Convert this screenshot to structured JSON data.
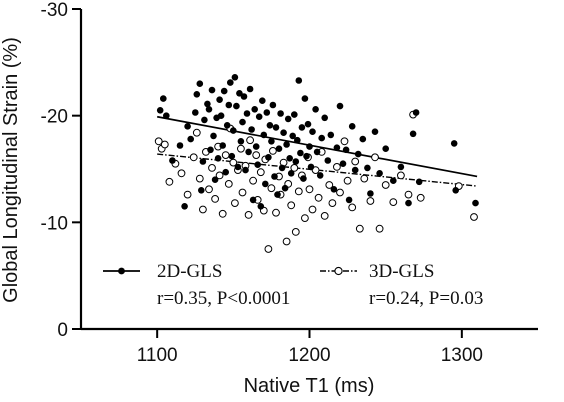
{
  "chart_data": {
    "type": "scatter",
    "xlabel": "Native T1 (ms)",
    "ylabel": "Global Longitudinal Strain (%)",
    "xlim": [
      1050,
      1350
    ],
    "ylim": [
      0,
      -30
    ],
    "x_ticks": [
      1100,
      1200,
      1300
    ],
    "y_ticks": [
      0,
      -10,
      -20,
      -30
    ],
    "x_tick_labels": [
      "1100",
      "1200",
      "1300"
    ],
    "y_tick_labels": [
      "0",
      "-10",
      "-20",
      "-30"
    ],
    "legend_position": "bottom",
    "series": [
      {
        "name": "2D-GLS",
        "stat": "r=0.35, P<0.0001",
        "marker": "filled-circle",
        "line_style": "solid",
        "color": "#000000",
        "fit": {
          "x": [
            1100,
            1310
          ],
          "y": [
            -19.9,
            -14.3
          ]
        },
        "points": [
          [
            1102,
            -20.5
          ],
          [
            1104,
            -21.6
          ],
          [
            1106,
            -20.0
          ],
          [
            1110,
            -15.8
          ],
          [
            1115,
            -17.2
          ],
          [
            1118,
            -11.5
          ],
          [
            1120,
            -19.0
          ],
          [
            1122,
            -17.8
          ],
          [
            1125,
            -20.3
          ],
          [
            1126,
            -22.0
          ],
          [
            1128,
            -23.0
          ],
          [
            1129,
            -13.0
          ],
          [
            1130,
            -15.7
          ],
          [
            1131,
            -19.6
          ],
          [
            1133,
            -21.1
          ],
          [
            1134,
            -20.6
          ],
          [
            1135,
            -16.8
          ],
          [
            1136,
            -22.4
          ],
          [
            1137,
            -18.1
          ],
          [
            1138,
            -14.0
          ],
          [
            1139,
            -19.8
          ],
          [
            1140,
            -16.0
          ],
          [
            1141,
            -21.5
          ],
          [
            1142,
            -20.0
          ],
          [
            1143,
            -17.2
          ],
          [
            1144,
            -22.3
          ],
          [
            1145,
            -14.7
          ],
          [
            1146,
            -19.1
          ],
          [
            1147,
            -21.0
          ],
          [
            1148,
            -23.1
          ],
          [
            1149,
            -16.2
          ],
          [
            1150,
            -18.6
          ],
          [
            1151,
            -23.6
          ],
          [
            1152,
            -20.9
          ],
          [
            1153,
            -15.2
          ],
          [
            1154,
            -22.1
          ],
          [
            1155,
            -17.6
          ],
          [
            1156,
            -19.4
          ],
          [
            1157,
            -21.8
          ],
          [
            1158,
            -14.9
          ],
          [
            1159,
            -20.2
          ],
          [
            1160,
            -16.6
          ],
          [
            1161,
            -22.5
          ],
          [
            1162,
            -18.7
          ],
          [
            1163,
            -12.1
          ],
          [
            1164,
            -20.6
          ],
          [
            1165,
            -17.1
          ],
          [
            1166,
            -15.4
          ],
          [
            1167,
            -19.9
          ],
          [
            1168,
            -11.5
          ],
          [
            1169,
            -21.4
          ],
          [
            1170,
            -18.2
          ],
          [
            1171,
            -13.6
          ],
          [
            1172,
            -20.3
          ],
          [
            1173,
            -16.1
          ],
          [
            1174,
            -19.1
          ],
          [
            1175,
            -17.6
          ],
          [
            1176,
            -21.0
          ],
          [
            1177,
            -14.3
          ],
          [
            1178,
            -18.9
          ],
          [
            1179,
            -12.6
          ],
          [
            1180,
            -16.9
          ],
          [
            1181,
            -20.2
          ],
          [
            1182,
            -15.1
          ],
          [
            1183,
            -18.4
          ],
          [
            1184,
            -13.2
          ],
          [
            1185,
            -17.3
          ],
          [
            1186,
            -19.7
          ],
          [
            1187,
            -16.0
          ],
          [
            1188,
            -14.6
          ],
          [
            1189,
            -18.1
          ],
          [
            1190,
            -20.1
          ],
          [
            1191,
            -15.7
          ],
          [
            1192,
            -17.7
          ],
          [
            1193,
            -23.3
          ],
          [
            1194,
            -16.5
          ],
          [
            1195,
            -18.9
          ],
          [
            1196,
            -14.1
          ],
          [
            1197,
            -21.6
          ],
          [
            1198,
            -16.2
          ],
          [
            1199,
            -19.2
          ],
          [
            1200,
            -17.1
          ],
          [
            1201,
            -15.2
          ],
          [
            1202,
            -18.5
          ],
          [
            1204,
            -20.6
          ],
          [
            1205,
            -16.6
          ],
          [
            1207,
            -14.4
          ],
          [
            1208,
            -17.9
          ],
          [
            1210,
            -19.8
          ],
          [
            1212,
            -15.8
          ],
          [
            1214,
            -18.2
          ],
          [
            1216,
            -13.1
          ],
          [
            1218,
            -17.0
          ],
          [
            1220,
            -20.9
          ],
          [
            1222,
            -15.5
          ],
          [
            1224,
            -16.8
          ],
          [
            1226,
            -12.1
          ],
          [
            1228,
            -19.0
          ],
          [
            1230,
            -14.9
          ],
          [
            1232,
            -16.4
          ],
          [
            1235,
            -17.8
          ],
          [
            1238,
            -15.1
          ],
          [
            1240,
            -12.7
          ],
          [
            1243,
            -18.5
          ],
          [
            1246,
            -14.6
          ],
          [
            1250,
            -16.9
          ],
          [
            1255,
            -13.9
          ],
          [
            1260,
            -15.2
          ],
          [
            1265,
            -11.8
          ],
          [
            1268,
            -18.3
          ],
          [
            1270,
            -20.3
          ],
          [
            1272,
            -13.8
          ],
          [
            1295,
            -17.4
          ],
          [
            1296,
            -13.0
          ],
          [
            1309,
            -11.8
          ]
        ]
      },
      {
        "name": "3D-GLS",
        "stat": "r=0.24, P=0.03",
        "marker": "open-circle",
        "line_style": "dash-dot",
        "color": "#000000",
        "fit": {
          "x": [
            1100,
            1310
          ],
          "y": [
            -16.4,
            -13.4
          ]
        },
        "points": [
          [
            1101,
            -17.6
          ],
          [
            1103,
            -16.9
          ],
          [
            1105,
            -17.3
          ],
          [
            1108,
            -13.8
          ],
          [
            1112,
            -15.5
          ],
          [
            1116,
            -14.6
          ],
          [
            1120,
            -12.6
          ],
          [
            1124,
            -16.1
          ],
          [
            1126,
            -18.4
          ],
          [
            1128,
            -14.1
          ],
          [
            1130,
            -11.2
          ],
          [
            1132,
            -16.6
          ],
          [
            1134,
            -13.1
          ],
          [
            1136,
            -15.1
          ],
          [
            1138,
            -12.2
          ],
          [
            1140,
            -17.1
          ],
          [
            1141,
            -14.4
          ],
          [
            1143,
            -10.8
          ],
          [
            1145,
            -16.3
          ],
          [
            1147,
            -13.6
          ],
          [
            1148,
            -18.8
          ],
          [
            1150,
            -15.6
          ],
          [
            1151,
            -11.8
          ],
          [
            1153,
            -14.9
          ],
          [
            1155,
            -16.9
          ],
          [
            1156,
            -12.8
          ],
          [
            1158,
            -15.3
          ],
          [
            1160,
            -10.7
          ],
          [
            1161,
            -17.7
          ],
          [
            1163,
            -13.9
          ],
          [
            1165,
            -16.3
          ],
          [
            1166,
            -12.1
          ],
          [
            1168,
            -14.7
          ],
          [
            1170,
            -11.1
          ],
          [
            1171,
            -15.9
          ],
          [
            1173,
            -7.5
          ],
          [
            1175,
            -13.2
          ],
          [
            1176,
            -16.7
          ],
          [
            1178,
            -10.9
          ],
          [
            1180,
            -14.3
          ],
          [
            1181,
            -12.6
          ],
          [
            1183,
            -15.6
          ],
          [
            1185,
            -8.2
          ],
          [
            1186,
            -13.6
          ],
          [
            1188,
            -11.6
          ],
          [
            1190,
            -15.1
          ],
          [
            1191,
            -9.1
          ],
          [
            1193,
            -12.9
          ],
          [
            1195,
            -14.4
          ],
          [
            1197,
            -10.4
          ],
          [
            1199,
            -16.1
          ],
          [
            1200,
            -13.1
          ],
          [
            1202,
            -11.2
          ],
          [
            1204,
            -14.9
          ],
          [
            1206,
            -12.3
          ],
          [
            1208,
            -16.6
          ],
          [
            1210,
            -10.6
          ],
          [
            1213,
            -13.5
          ],
          [
            1215,
            -11.8
          ],
          [
            1218,
            -15.2
          ],
          [
            1220,
            -12.8
          ],
          [
            1223,
            -17.6
          ],
          [
            1225,
            -13.9
          ],
          [
            1228,
            -11.4
          ],
          [
            1230,
            -15.7
          ],
          [
            1233,
            -9.4
          ],
          [
            1236,
            -14.1
          ],
          [
            1240,
            -12.0
          ],
          [
            1243,
            -16.1
          ],
          [
            1246,
            -9.4
          ],
          [
            1250,
            -13.5
          ],
          [
            1255,
            -11.9
          ],
          [
            1260,
            -14.4
          ],
          [
            1265,
            -12.6
          ],
          [
            1268,
            -20.1
          ],
          [
            1273,
            -12.3
          ],
          [
            1298,
            -13.4
          ],
          [
            1308,
            -10.5
          ]
        ]
      }
    ]
  }
}
